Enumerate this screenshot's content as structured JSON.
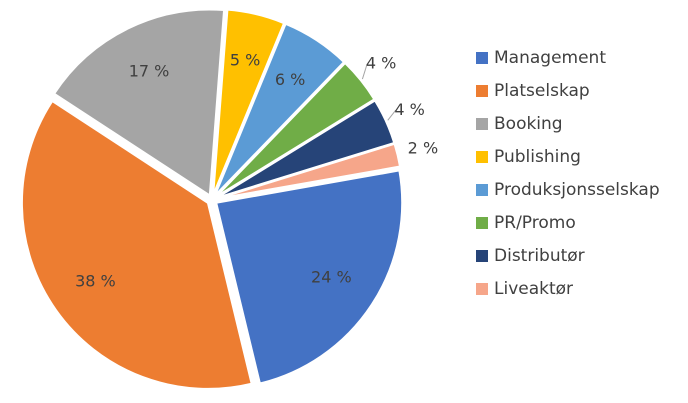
{
  "chart_data": {
    "type": "pie",
    "categories": [
      "Management",
      "Platselskap",
      "Booking",
      "Publishing",
      "Produksjonsselskap",
      "PR/Promo",
      "Distributør",
      "Liveaktør"
    ],
    "values": [
      24,
      38,
      17,
      5,
      6,
      4,
      4,
      2
    ],
    "value_labels": [
      "24 %",
      "38 %",
      "17 %",
      "5 %",
      "6 %",
      "4 %",
      "4 %",
      "2 %"
    ],
    "colors": [
      "#4472c4",
      "#ed7d31",
      "#a5a5a5",
      "#ffc000",
      "#5b9bd5",
      "#70ad47",
      "#264478",
      "#f6a68a"
    ],
    "legend": "right"
  }
}
